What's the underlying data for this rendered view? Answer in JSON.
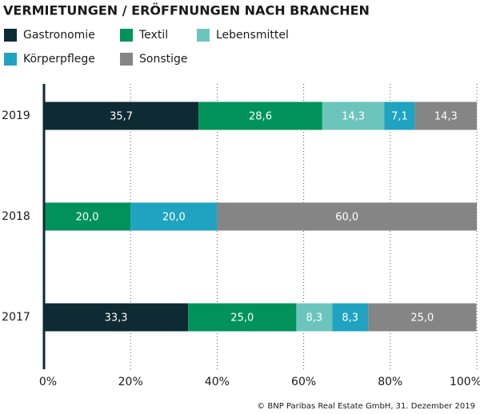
{
  "chart_data": {
    "type": "stacked-barh",
    "title": "VERMIETUNGEN / ERÖFFNUNGEN NACH BRANCHEN",
    "categories": [
      "2019",
      "2018",
      "2017"
    ],
    "series": [
      {
        "name": "Gastronomie",
        "color": "#0e2a33",
        "values": [
          35.7,
          null,
          33.3
        ],
        "value_labels": [
          "35,7",
          null,
          "33,3"
        ]
      },
      {
        "name": "Textil",
        "color": "#00925b",
        "values": [
          28.6,
          20.0,
          25.0
        ],
        "value_labels": [
          "28,6",
          "20,0",
          "25,0"
        ]
      },
      {
        "name": "Lebensmittel",
        "color": "#6bc5bd",
        "values": [
          14.3,
          null,
          8.3
        ],
        "value_labels": [
          "14,3",
          null,
          "8,3"
        ]
      },
      {
        "name": "Körperpflege",
        "color": "#1fa3c0",
        "values": [
          7.1,
          20.0,
          8.3
        ],
        "value_labels": [
          "7,1",
          "20,0",
          "8,3"
        ]
      },
      {
        "name": "Sonstige",
        "color": "#858585",
        "values": [
          14.3,
          60.0,
          25.0
        ],
        "value_labels": [
          "14,3",
          "60,0",
          "25,0"
        ]
      }
    ],
    "xlim": [
      0,
      100
    ],
    "xticks": [
      {
        "value": 0,
        "label": "0%"
      },
      {
        "value": 20,
        "label": "20%"
      },
      {
        "value": 40,
        "label": "40%"
      },
      {
        "value": 60,
        "label": "60%"
      },
      {
        "value": 80,
        "label": "80%"
      },
      {
        "value": 100,
        "label": "100%"
      }
    ],
    "grid": true,
    "source": "© BNP Paribas Real Estate GmbH, 31. Dezember 2019"
  }
}
